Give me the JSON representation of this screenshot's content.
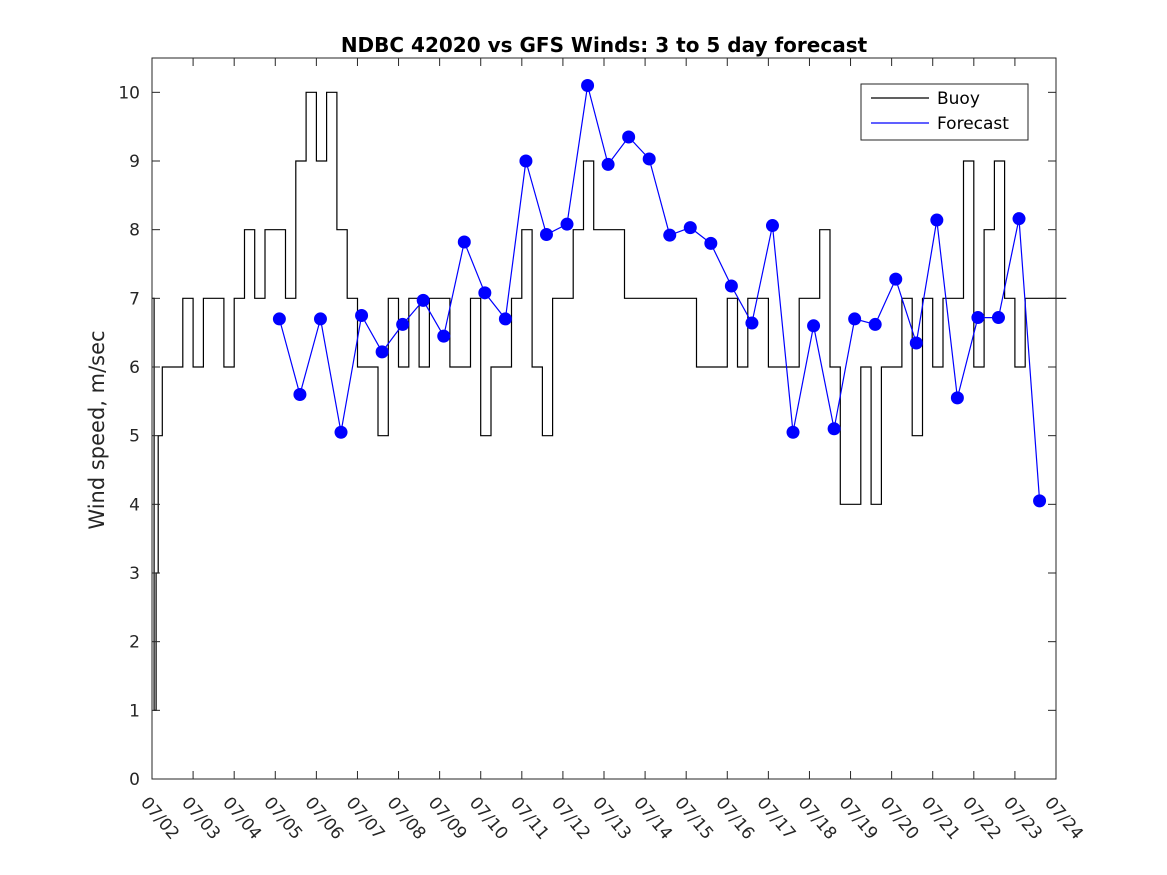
{
  "chart_data": {
    "type": "line",
    "title": "NDBC 42020 vs GFS Winds: 3 to 5 day forecast",
    "xlabel": "",
    "ylabel": "Wind speed, m/sec",
    "xlim": [
      "07/02",
      "07/24"
    ],
    "ylim": [
      0,
      10.5
    ],
    "x_ticks": [
      "07/02",
      "07/03",
      "07/04",
      "07/05",
      "07/06",
      "07/07",
      "07/08",
      "07/09",
      "07/10",
      "07/11",
      "07/12",
      "07/13",
      "07/14",
      "07/15",
      "07/16",
      "07/17",
      "07/18",
      "07/19",
      "07/20",
      "07/21",
      "07/22",
      "07/23",
      "07/24"
    ],
    "y_ticks": [
      0,
      1,
      2,
      3,
      4,
      5,
      6,
      7,
      8,
      9,
      10
    ],
    "legend": {
      "position": "top-right",
      "entries": [
        "Buoy",
        "Forecast"
      ]
    },
    "colors": {
      "buoy": "#000000",
      "forecast": "#0000ff"
    },
    "grid": false,
    "series": [
      {
        "name": "Buoy",
        "style": "step-line",
        "x_days": [
          0.0,
          0.05,
          0.1,
          0.15,
          0.25,
          0.5,
          0.75,
          1.0,
          1.25,
          1.5,
          1.75,
          2.0,
          2.25,
          2.5,
          2.75,
          3.0,
          3.25,
          3.5,
          3.75,
          4.0,
          4.25,
          4.5,
          4.75,
          5.0,
          5.25,
          5.5,
          5.75,
          6.0,
          6.25,
          6.5,
          6.75,
          7.0,
          7.25,
          7.5,
          7.75,
          8.0,
          8.25,
          8.5,
          8.75,
          9.0,
          9.25,
          9.5,
          9.75,
          10.0,
          10.25,
          10.5,
          10.75,
          11.0,
          11.25,
          11.5,
          11.75,
          12.0,
          12.25,
          12.5,
          12.75,
          13.0,
          13.25,
          13.5,
          13.75,
          14.0,
          14.25,
          14.5,
          14.75,
          15.0,
          15.25,
          15.5,
          15.75,
          16.0,
          16.25,
          16.5,
          16.75,
          17.0,
          17.25,
          17.5,
          17.75,
          18.0,
          18.25,
          18.5,
          18.75,
          19.0,
          19.25,
          19.5,
          19.75,
          20.0,
          20.25,
          20.5,
          20.75,
          21.0,
          21.25,
          21.5,
          21.75,
          22.0
        ],
        "values": [
          7,
          1,
          3,
          5,
          6,
          6,
          7,
          6,
          7,
          7,
          6,
          7,
          8,
          7,
          8,
          8,
          7,
          9,
          10,
          9,
          10,
          8,
          7,
          6,
          6,
          5,
          7,
          6,
          7,
          6,
          7,
          7,
          6,
          6,
          7,
          5,
          6,
          6,
          7,
          8,
          6,
          5,
          7,
          7,
          8,
          9,
          8,
          8,
          8,
          7,
          7,
          7,
          7,
          7,
          7,
          7,
          6,
          6,
          6,
          7,
          6,
          7,
          7,
          6,
          6,
          6,
          7,
          7,
          8,
          6,
          4,
          4,
          6,
          4,
          6,
          6,
          7,
          5,
          7,
          6,
          7,
          7,
          9,
          6,
          8,
          9,
          7,
          6,
          7,
          7,
          7,
          7
        ]
      },
      {
        "name": "Forecast",
        "style": "line+markers",
        "x_days": [
          3.1,
          3.6,
          4.1,
          4.6,
          5.1,
          5.6,
          6.1,
          6.6,
          7.1,
          7.6,
          8.1,
          8.6,
          9.1,
          9.6,
          10.1,
          10.6,
          11.1,
          11.6,
          12.1,
          12.6,
          13.1,
          13.6,
          14.1,
          14.6,
          15.1,
          15.6,
          16.1,
          16.6,
          17.1,
          17.6,
          18.1,
          18.6,
          19.1,
          19.6,
          20.1,
          20.6,
          21.1,
          21.6
        ],
        "values": [
          6.7,
          5.6,
          6.7,
          5.05,
          6.75,
          6.22,
          6.62,
          6.97,
          6.45,
          7.82,
          7.08,
          6.7,
          9.0,
          7.93,
          8.08,
          10.1,
          8.95,
          9.35,
          9.03,
          7.92,
          8.03,
          7.8,
          7.18,
          6.64,
          8.06,
          5.05,
          6.6,
          5.1,
          6.7,
          6.62,
          7.28,
          6.35,
          8.14,
          5.55,
          6.72,
          6.72,
          8.16,
          4.05
        ]
      }
    ]
  }
}
